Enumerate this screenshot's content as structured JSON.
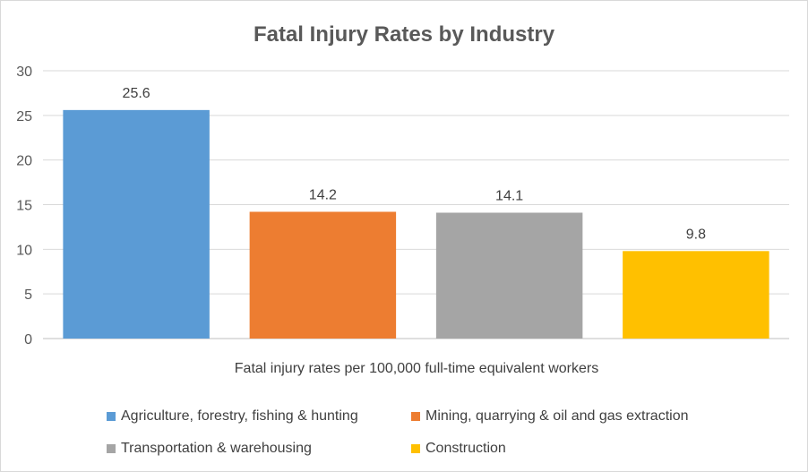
{
  "chart_data": {
    "type": "bar",
    "title": "Fatal Injury Rates by Industry",
    "xlabel": "Fatal injury rates per 100,000 full-time equivalent workers",
    "ylabel": "",
    "ylim": [
      0,
      30
    ],
    "yticks": [
      0,
      5,
      10,
      15,
      20,
      25,
      30
    ],
    "grid": true,
    "legend_position": "bottom",
    "series": [
      {
        "name": "Agriculture, forestry, fishing & hunting",
        "value": 25.6,
        "label": "25.6",
        "color": "#5b9bd5"
      },
      {
        "name": "Mining, quarrying & oil and gas extraction",
        "value": 14.2,
        "label": "14.2",
        "color": "#ed7d31"
      },
      {
        "name": "Transportation & warehousing",
        "value": 14.1,
        "label": "14.1",
        "color": "#a5a5a5"
      },
      {
        "name": "Construction",
        "value": 9.8,
        "label": "9.8",
        "color": "#ffc000"
      }
    ]
  }
}
